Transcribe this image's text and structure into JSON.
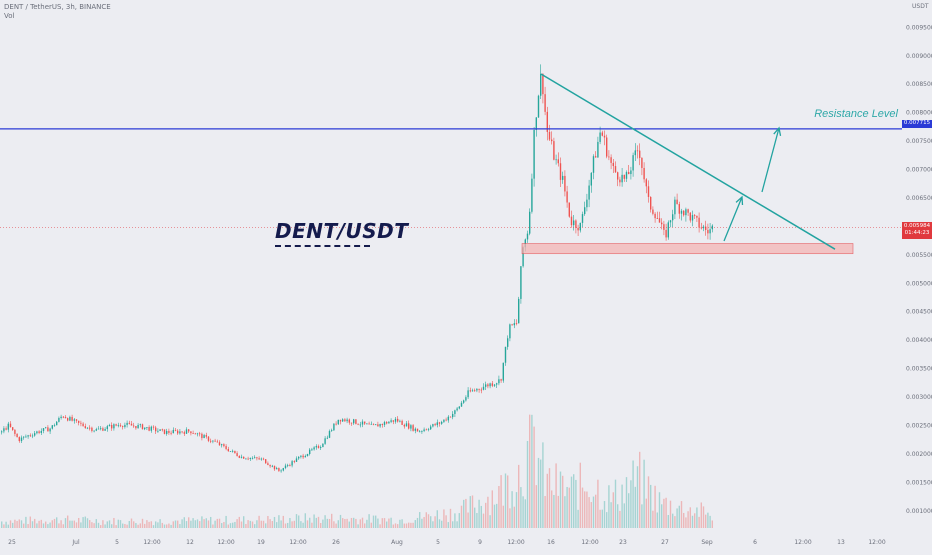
{
  "header": {
    "title": "DENT / TetherUS, 3h, BINANCE",
    "indicator": "Vol",
    "currency": "USDT"
  },
  "annotations": {
    "pair_label": "DENT/USDT",
    "resistance_label": "Resistance Level",
    "resistance_badge": "0.007715",
    "price_badge": "0.005984",
    "countdown": "01:44:23"
  },
  "colors": {
    "background": "#ecedf2",
    "up_candle": "#26a69a",
    "down_candle": "#ef5350",
    "resistance_line": "#2b3bd6",
    "trend_line": "#22a3a0",
    "support_zone": "#f5b5b5",
    "price_line": "#e0393e"
  },
  "chart_data": {
    "type": "candlestick",
    "symbol": "DENT / TetherUS",
    "timeframe": "3h",
    "exchange": "BINANCE",
    "ylabel": "USDT",
    "ylim": [
      0.00075,
      0.0097
    ],
    "y_ticks": [
      "0.009500",
      "0.009000",
      "0.008500",
      "0.008000",
      "0.007500",
      "0.007000",
      "0.006500",
      "0.006000",
      "0.005500",
      "0.005000",
      "0.004500",
      "0.004000",
      "0.003500",
      "0.003000",
      "0.002500",
      "0.002000",
      "0.001500",
      "0.001000"
    ],
    "x_ticks": [
      "25",
      "Jul",
      "5",
      "12:00",
      "12",
      "12:00",
      "19",
      "12:00",
      "26",
      "Aug",
      "5",
      "9",
      "12:00",
      "16",
      "12:00",
      "23",
      "27",
      "Sep",
      "6",
      "12:00",
      "13",
      "12:00"
    ],
    "price_path": [
      [
        0,
        0.00238
      ],
      [
        8,
        0.0025
      ],
      [
        18,
        0.00225
      ],
      [
        35,
        0.00238
      ],
      [
        50,
        0.00245
      ],
      [
        62,
        0.00268
      ],
      [
        75,
        0.00255
      ],
      [
        95,
        0.00242
      ],
      [
        120,
        0.00252
      ],
      [
        140,
        0.00248
      ],
      [
        165,
        0.00238
      ],
      [
        190,
        0.0024
      ],
      [
        215,
        0.0022
      ],
      [
        240,
        0.00195
      ],
      [
        262,
        0.0019
      ],
      [
        278,
        0.0017
      ],
      [
        300,
        0.00195
      ],
      [
        320,
        0.00215
      ],
      [
        338,
        0.00262
      ],
      [
        350,
        0.00258
      ],
      [
        372,
        0.00248
      ],
      [
        395,
        0.0026
      ],
      [
        418,
        0.0024
      ],
      [
        440,
        0.00255
      ],
      [
        455,
        0.00275
      ],
      [
        468,
        0.00308
      ],
      [
        482,
        0.00318
      ],
      [
        500,
        0.0033
      ],
      [
        508,
        0.0042
      ],
      [
        516,
        0.0043
      ],
      [
        522,
        0.0056
      ],
      [
        528,
        0.006
      ],
      [
        534,
        0.0078
      ],
      [
        538,
        0.0084
      ],
      [
        541,
        0.0087
      ],
      [
        546,
        0.0077
      ],
      [
        554,
        0.0072
      ],
      [
        562,
        0.0068
      ],
      [
        570,
        0.0061
      ],
      [
        580,
        0.006
      ],
      [
        590,
        0.0069
      ],
      [
        600,
        0.0077
      ],
      [
        612,
        0.007
      ],
      [
        625,
        0.0068
      ],
      [
        638,
        0.0074
      ],
      [
        648,
        0.0064
      ],
      [
        656,
        0.0062
      ],
      [
        664,
        0.0058
      ],
      [
        674,
        0.0064
      ],
      [
        688,
        0.0062
      ],
      [
        700,
        0.006
      ],
      [
        708,
        0.0059
      ],
      [
        712,
        0.00598
      ]
    ],
    "volume_path": [
      [
        0,
        0.08
      ],
      [
        60,
        0.1
      ],
      [
        120,
        0.08
      ],
      [
        200,
        0.09
      ],
      [
        260,
        0.1
      ],
      [
        320,
        0.12
      ],
      [
        400,
        0.1
      ],
      [
        460,
        0.2
      ],
      [
        500,
        0.45
      ],
      [
        520,
        0.7
      ],
      [
        534,
        1.0
      ],
      [
        545,
        0.55
      ],
      [
        570,
        0.45
      ],
      [
        590,
        0.55
      ],
      [
        610,
        0.35
      ],
      [
        638,
        0.6
      ],
      [
        660,
        0.3
      ],
      [
        700,
        0.2
      ],
      [
        712,
        0.15
      ]
    ],
    "volume_axis": "hidden",
    "grid": false,
    "legend": "none"
  }
}
